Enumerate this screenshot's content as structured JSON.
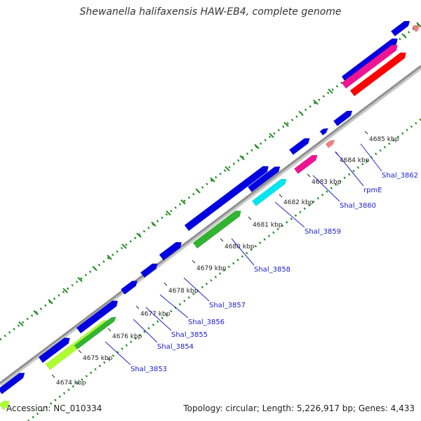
{
  "title": "Shewanella halifaxensis HAW-EB4, complete genome",
  "footer": {
    "accession": "Accession: NC_010334",
    "stats": "Topology: circular; Length: 5,226,917 bp; Genes: 4,433"
  },
  "colors": {
    "background": "#ffffff",
    "backbone": "#909090",
    "backbone_shadow": "#c8c8c8",
    "gc_dots": "#228b22",
    "cds_blue": "#0000e0",
    "green": "#32b432",
    "lime": "#adff2f",
    "cyan": "#00e5ee",
    "pink": "#ee1493",
    "red": "#ff0000",
    "salmon": "#f08080",
    "label_text": "#1c1ccc"
  },
  "tick_labels": [
    "4674 kbp",
    "4675 kbp",
    "4676 kbp",
    "4677 kbp",
    "4678 kbp",
    "4679 kbp",
    "4680 kbp",
    "4681 kbp",
    "4682 kbp",
    "4683 kbp",
    "4684 kbp",
    "4685 kbp"
  ],
  "gene_labels": [
    "Shal_3853",
    "Shal_3854",
    "Shal_3855",
    "Shal_3856",
    "Shal_3857",
    "Shal_3858",
    "Shal_3859",
    "Shal_3860",
    "rpmE",
    "Shal_3862"
  ],
  "features": [
    {
      "color": "cds_blue"
    },
    {
      "color": "cds_blue"
    },
    {
      "color": "cds_blue"
    },
    {
      "color": "cds_blue"
    },
    {
      "color": "cds_blue"
    },
    {
      "color": "cds_blue"
    },
    {
      "color": "cds_blue"
    },
    {
      "color": "cds_blue"
    },
    {
      "color": "cds_blue"
    },
    {
      "color": "cds_blue"
    },
    {
      "color": "cds_blue"
    },
    {
      "color": "cds_blue"
    },
    {
      "color": "cds_blue"
    },
    {
      "color": "lime"
    },
    {
      "color": "green"
    },
    {
      "color": "green"
    },
    {
      "color": "cyan"
    },
    {
      "color": "pink"
    },
    {
      "color": "salmon"
    },
    {
      "color": "pink"
    },
    {
      "color": "red"
    },
    {
      "color": "salmon"
    },
    {
      "color": "lime"
    }
  ]
}
